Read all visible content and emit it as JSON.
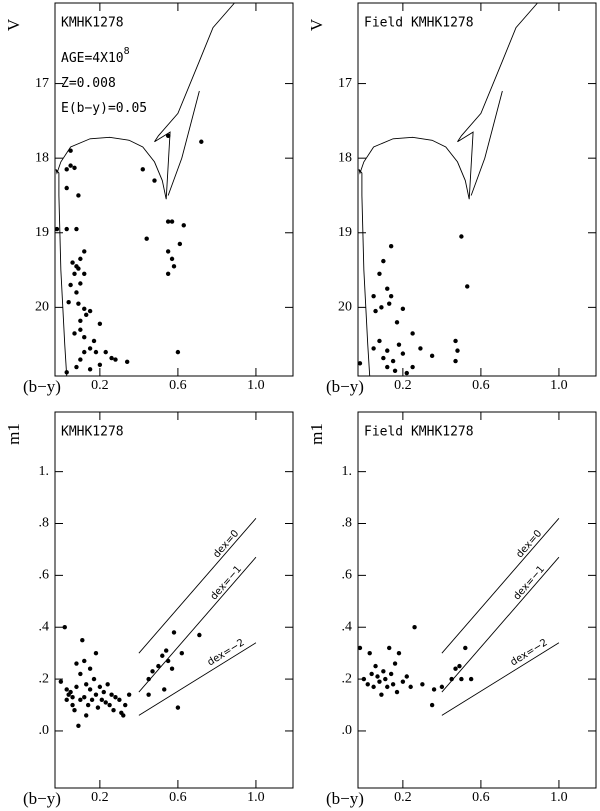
{
  "chart_data": [
    {
      "type": "scatter",
      "title": "KMHK1278",
      "xlabel": "(b−y)",
      "ylabel": "V",
      "annotations": [
        {
          "text": "AGE=4X10",
          "sup": "8"
        },
        {
          "text": "Z=0.008"
        },
        {
          "text": "E(b−y)=0.05"
        }
      ],
      "xlim": [
        -0.03,
        1.19
      ],
      "ylim": [
        20.92,
        15.92
      ],
      "xticks": [
        0.2,
        0.6,
        {
          "value": 1,
          "label": "1.0"
        }
      ],
      "yticks": [
        17,
        18,
        19,
        20
      ],
      "x": [
        0.05,
        0.05,
        0.03,
        0.07,
        0.03,
        0.09,
        0.55,
        0.72,
        0.42,
        0.48,
        0.03,
        0.08,
        0.12,
        0.44,
        0.55,
        0.57,
        0.63,
        0.55,
        0.61,
        0.57,
        0.58,
        0.55,
        0.06,
        0.08,
        0.1,
        0.07,
        0.09,
        0.12,
        0.05,
        0.1,
        0.08,
        0.04,
        0.09,
        0.12,
        0.15,
        0.13,
        0.1,
        0.2,
        0.1,
        0.07,
        0.12,
        0.17,
        0.15,
        0.12,
        0.18,
        0.23,
        0.26,
        0.28,
        0.1,
        0.34,
        0.2,
        0.08,
        0.15,
        0.03,
        0.6,
        -0.02
      ],
      "y": [
        17.9,
        18.1,
        18.15,
        18.13,
        18.4,
        18.5,
        17.7,
        17.78,
        18.15,
        18.3,
        18.95,
        18.95,
        19.25,
        19.08,
        18.85,
        18.85,
        18.9,
        19.25,
        19.15,
        19.35,
        19.45,
        19.55,
        19.4,
        19.45,
        19.35,
        19.55,
        19.48,
        19.55,
        19.7,
        19.68,
        19.8,
        19.93,
        19.95,
        20.02,
        20.05,
        20.1,
        20.18,
        20.22,
        20.3,
        20.35,
        20.4,
        20.45,
        20.55,
        20.6,
        20.6,
        20.6,
        20.68,
        20.7,
        20.7,
        20.73,
        20.77,
        20.8,
        20.83,
        20.87,
        20.6,
        18.95
      ],
      "lines": [
        {
          "x": [
            0.03,
            0.02,
            0.01,
            0.0,
            -0.005,
            -0.01,
            -0.01,
            -0.025,
            -0.02,
            0.0,
            0.05,
            0.15,
            0.25,
            0.35,
            0.42,
            0.48,
            0.52,
            0.54,
            0.55,
            0.56,
            0.48,
            0.5,
            0.6,
            0.71,
            0.78,
            0.89
          ],
          "y": [
            20.92,
            20.5,
            20.0,
            19.5,
            19.0,
            18.5,
            18.2,
            18.15,
            18.2,
            18.05,
            17.85,
            17.74,
            17.72,
            17.76,
            17.85,
            18.05,
            18.3,
            18.55,
            18.1,
            17.65,
            17.78,
            17.7,
            17.4,
            16.7,
            16.25,
            15.92
          ]
        },
        {
          "x": [
            0.55,
            0.62,
            0.68,
            0.71
          ],
          "y": [
            18.5,
            18.0,
            17.4,
            17.1
          ]
        }
      ]
    },
    {
      "type": "scatter",
      "title": "Field KMHK1278",
      "xlabel": "(b−y)",
      "ylabel": "V",
      "xlim": [
        -0.03,
        1.19
      ],
      "ylim": [
        20.92,
        15.92
      ],
      "xticks": [
        0.2,
        0.6,
        {
          "value": 1,
          "label": "1.0"
        }
      ],
      "yticks": [
        17,
        18,
        19,
        20
      ],
      "x": [
        0.14,
        0.5,
        0.1,
        0.08,
        0.53,
        0.12,
        0.05,
        0.14,
        0.09,
        0.13,
        0.2,
        0.06,
        0.17,
        0.25,
        0.08,
        0.18,
        0.47,
        0.05,
        0.12,
        0.29,
        0.48,
        0.35,
        0.2,
        0.1,
        0.15,
        0.47,
        -0.02,
        0.25,
        0.12,
        0.16,
        0.22
      ],
      "y": [
        19.18,
        19.05,
        19.38,
        19.55,
        19.72,
        19.75,
        19.85,
        19.85,
        20.0,
        19.95,
        20.02,
        20.05,
        20.2,
        20.35,
        20.45,
        20.5,
        20.45,
        20.55,
        20.58,
        20.55,
        20.58,
        20.65,
        20.62,
        20.68,
        20.72,
        20.72,
        20.75,
        20.8,
        20.8,
        20.85,
        20.88
      ],
      "lines": [
        {
          "x": [
            0.03,
            0.02,
            0.01,
            0.0,
            -0.005,
            -0.01,
            -0.01,
            -0.025,
            -0.02,
            0.0,
            0.05,
            0.15,
            0.25,
            0.35,
            0.42,
            0.48,
            0.52,
            0.54,
            0.55,
            0.56,
            0.48,
            0.5,
            0.6,
            0.71,
            0.78,
            0.89
          ],
          "y": [
            20.92,
            20.5,
            20.0,
            19.5,
            19.0,
            18.5,
            18.2,
            18.15,
            18.2,
            18.05,
            17.85,
            17.74,
            17.72,
            17.76,
            17.85,
            18.05,
            18.3,
            18.55,
            18.1,
            17.65,
            17.78,
            17.7,
            17.4,
            16.7,
            16.25,
            15.92
          ]
        },
        {
          "x": [
            0.55,
            0.62,
            0.68,
            0.71
          ],
          "y": [
            18.5,
            18.0,
            17.4,
            17.1
          ]
        }
      ]
    },
    {
      "type": "scatter",
      "title": "KMHK1278",
      "xlabel": "(b−y)",
      "ylabel": "m1",
      "xlim": [
        -0.03,
        1.19
      ],
      "ylim": [
        -0.22,
        1.23
      ],
      "xticks": [
        0.2,
        0.6,
        {
          "value": 1,
          "label": "1.0"
        }
      ],
      "yticks": [
        {
          "value": 1,
          "label": "1."
        },
        {
          "value": 0.8,
          "label": ".8"
        },
        {
          "value": 0.6,
          "label": ".6"
        },
        {
          "value": 0.4,
          "label": ".4"
        },
        {
          "value": 0.2,
          "label": ".2"
        },
        {
          "value": 0,
          "label": ".0"
        }
      ],
      "x": [
        0.0,
        0.02,
        0.05,
        0.03,
        0.06,
        0.04,
        0.08,
        0.07,
        0.09,
        0.1,
        0.1,
        0.11,
        0.12,
        0.13,
        0.14,
        0.15,
        0.15,
        0.16,
        0.17,
        0.18,
        0.19,
        0.2,
        0.21,
        0.22,
        0.23,
        0.24,
        0.25,
        0.26,
        0.27,
        0.28,
        0.3,
        0.31,
        0.33,
        0.35,
        0.32,
        0.13,
        0.06,
        0.03,
        0.12,
        0.08,
        0.18,
        0.45,
        0.47,
        0.5,
        0.52,
        0.54,
        0.55,
        0.57,
        0.58,
        0.6,
        0.62,
        0.71,
        0.53,
        0.45
      ],
      "y": [
        0.19,
        0.4,
        0.15,
        0.12,
        0.1,
        0.14,
        0.17,
        0.08,
        0.02,
        0.12,
        0.22,
        0.35,
        0.13,
        0.18,
        0.1,
        0.24,
        0.16,
        0.12,
        0.2,
        0.14,
        0.09,
        0.17,
        0.12,
        0.15,
        0.11,
        0.18,
        0.1,
        0.14,
        0.08,
        0.13,
        0.12,
        0.07,
        0.1,
        0.14,
        0.06,
        0.06,
        0.13,
        0.16,
        0.27,
        0.26,
        0.3,
        0.2,
        0.23,
        0.25,
        0.29,
        0.31,
        0.27,
        0.24,
        0.38,
        0.09,
        0.3,
        0.37,
        0.16,
        0.14
      ],
      "lines": [
        {
          "label": "dex=0",
          "x": [
            0.4,
            1.0
          ],
          "y": [
            0.3,
            0.82
          ]
        },
        {
          "label": "dex=−1",
          "x": [
            0.4,
            1.0
          ],
          "y": [
            0.15,
            0.67
          ]
        },
        {
          "label": "dex=−2",
          "x": [
            0.4,
            1.0
          ],
          "y": [
            0.06,
            0.34
          ]
        }
      ]
    },
    {
      "type": "scatter",
      "title": "Field KMHK1278",
      "xlabel": "(b−y)",
      "ylabel": "m1",
      "xlim": [
        -0.03,
        1.19
      ],
      "ylim": [
        -0.22,
        1.23
      ],
      "xticks": [
        0.2,
        0.6,
        {
          "value": 1,
          "label": "1.0"
        }
      ],
      "yticks": [
        {
          "value": 1,
          "label": "1."
        },
        {
          "value": 0.8,
          "label": ".8"
        },
        {
          "value": 0.6,
          "label": ".6"
        },
        {
          "value": 0.4,
          "label": ".4"
        },
        {
          "value": 0.2,
          "label": ".2"
        },
        {
          "value": 0,
          "label": ".0"
        }
      ],
      "x": [
        -0.02,
        0.0,
        0.02,
        0.04,
        0.05,
        0.06,
        0.07,
        0.08,
        0.09,
        0.1,
        0.11,
        0.12,
        0.13,
        0.14,
        0.15,
        0.16,
        0.17,
        0.18,
        0.2,
        0.22,
        0.24,
        0.26,
        0.3,
        0.35,
        0.36,
        0.4,
        0.45,
        0.47,
        0.49,
        0.5,
        0.52,
        0.55,
        0.03
      ],
      "y": [
        0.32,
        0.2,
        0.18,
        0.22,
        0.17,
        0.25,
        0.21,
        0.19,
        0.14,
        0.23,
        0.2,
        0.17,
        0.32,
        0.22,
        0.18,
        0.26,
        0.15,
        0.3,
        0.19,
        0.21,
        0.17,
        0.4,
        0.18,
        0.1,
        0.16,
        0.17,
        0.2,
        0.24,
        0.25,
        0.2,
        0.32,
        0.2,
        0.3
      ],
      "lines": [
        {
          "label": "dex=0",
          "x": [
            0.4,
            1.0
          ],
          "y": [
            0.3,
            0.82
          ]
        },
        {
          "label": "dex=−1",
          "x": [
            0.4,
            1.0
          ],
          "y": [
            0.15,
            0.67
          ]
        },
        {
          "label": "dex=−2",
          "x": [
            0.4,
            1.0
          ],
          "y": [
            0.06,
            0.34
          ]
        }
      ]
    }
  ]
}
